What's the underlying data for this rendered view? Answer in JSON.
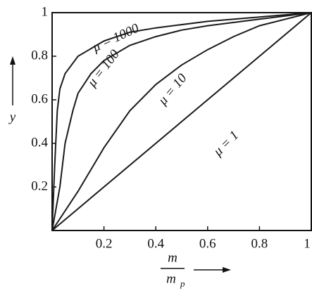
{
  "chart_data": {
    "type": "line",
    "ylabel": "y",
    "xlabel_numerator": "m",
    "xlabel_denominator": "m",
    "xlabel_denominator_sub": "p",
    "xlim": [
      0,
      1
    ],
    "ylim": [
      0,
      1
    ],
    "xticks": [
      0.2,
      0.4,
      0.6,
      0.8,
      1
    ],
    "yticks": [
      0.2,
      0.4,
      0.6,
      0.8,
      1
    ],
    "series": [
      {
        "name": "μ = 1000",
        "color": "#1a1a1a",
        "x": [
          0,
          0.01,
          0.02,
          0.03,
          0.05,
          0.1,
          0.2,
          0.3,
          0.4,
          0.6,
          0.8,
          1
        ],
        "values": [
          0,
          0.3,
          0.55,
          0.65,
          0.72,
          0.8,
          0.87,
          0.91,
          0.93,
          0.96,
          0.98,
          1
        ]
      },
      {
        "name": "μ = 100",
        "color": "#1a1a1a",
        "x": [
          0,
          0.03,
          0.05,
          0.08,
          0.1,
          0.15,
          0.2,
          0.3,
          0.4,
          0.5,
          0.6,
          0.8,
          1
        ],
        "values": [
          0,
          0.2,
          0.4,
          0.55,
          0.63,
          0.72,
          0.78,
          0.85,
          0.89,
          0.92,
          0.94,
          0.97,
          1
        ]
      },
      {
        "name": "μ = 10",
        "color": "#1a1a1a",
        "x": [
          0,
          0.1,
          0.2,
          0.3,
          0.4,
          0.5,
          0.6,
          0.7,
          0.8,
          0.9,
          1
        ],
        "values": [
          0,
          0.18,
          0.38,
          0.55,
          0.67,
          0.76,
          0.83,
          0.89,
          0.94,
          0.97,
          1
        ]
      },
      {
        "name": "μ = 1",
        "color": "#1a1a1a",
        "x": [
          0,
          1
        ],
        "values": [
          0,
          1
        ]
      }
    ]
  }
}
